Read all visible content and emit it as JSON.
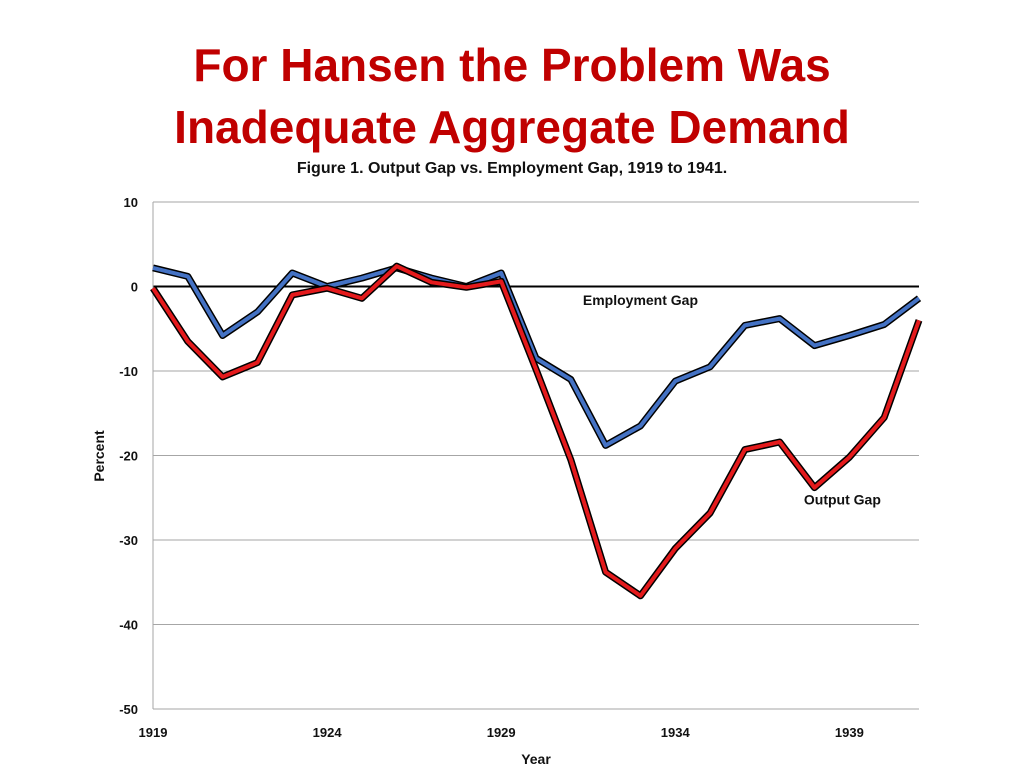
{
  "slide": {
    "title_line1": "For Hansen the Problem Was",
    "title_line2": "Inadequate Aggregate Demand"
  },
  "chart_data": {
    "type": "line",
    "title": "Figure 1. Output Gap vs. Employment Gap, 1919 to 1941.",
    "xlabel": "Year",
    "ylabel": "Percent",
    "xlim": [
      1919,
      1941
    ],
    "ylim": [
      -50,
      10
    ],
    "xticks": [
      1919,
      1924,
      1929,
      1934,
      1939
    ],
    "yticks": [
      10,
      0,
      -10,
      -20,
      -30,
      -40,
      -50
    ],
    "grid": "horizontal",
    "x": [
      1919,
      1920,
      1921,
      1922,
      1923,
      1924,
      1925,
      1926,
      1927,
      1928,
      1929,
      1930,
      1931,
      1932,
      1933,
      1934,
      1935,
      1936,
      1937,
      1938,
      1939,
      1940,
      1941
    ],
    "series": [
      {
        "name": "Employment Gap",
        "color": "#4472c4",
        "label_at": [
          1933.0,
          -2.2
        ],
        "values": [
          2.2,
          1.2,
          -5.8,
          -3.0,
          1.6,
          0.0,
          1.0,
          2.2,
          1.0,
          0.0,
          1.6,
          -8.5,
          -11.0,
          -18.8,
          -16.5,
          -11.2,
          -9.5,
          -4.6,
          -3.8,
          -7.0,
          -5.8,
          -4.5,
          -1.4
        ]
      },
      {
        "name": "Output Gap",
        "color": "#e41a1c",
        "label_at": [
          1938.8,
          -25.8
        ],
        "values": [
          -0.2,
          -6.5,
          -10.7,
          -9.0,
          -1.0,
          -0.2,
          -1.4,
          2.4,
          0.5,
          -0.1,
          0.6,
          -9.8,
          -20.5,
          -33.8,
          -36.6,
          -31.0,
          -26.8,
          -19.3,
          -18.4,
          -23.8,
          -20.2,
          -15.5,
          -4.0
        ]
      }
    ]
  }
}
